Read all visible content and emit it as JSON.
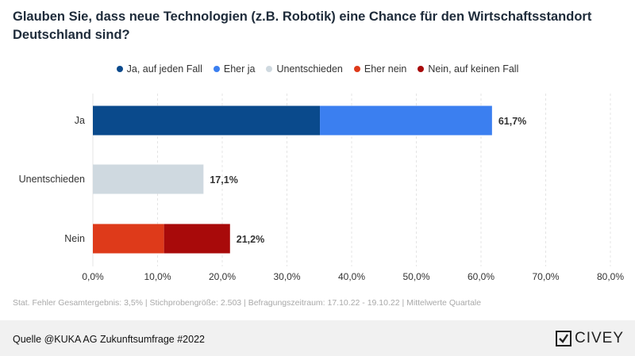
{
  "chart_data": {
    "type": "bar",
    "orientation": "horizontal",
    "stacked": true,
    "title": "Glauben Sie, dass neue Technologien (z.B. Robotik) eine Chance für den Wirtschaftsstandort Deutschland sind?",
    "categories": [
      "Ja",
      "Unentschieden",
      "Nein"
    ],
    "series": [
      {
        "name": "Ja, auf jeden Fall",
        "color": "#0a4a8c",
        "values": [
          35.1,
          0,
          0
        ]
      },
      {
        "name": "Eher ja",
        "color": "#3b7ff0",
        "values": [
          26.6,
          0,
          0
        ]
      },
      {
        "name": "Unentschieden",
        "color": "#cfd9e0",
        "values": [
          0,
          17.1,
          0
        ]
      },
      {
        "name": "Eher nein",
        "color": "#de3a1a",
        "values": [
          0,
          0,
          11.0
        ]
      },
      {
        "name": "Nein, auf keinen Fall",
        "color": "#a80a0a",
        "values": [
          0,
          0,
          10.2
        ]
      }
    ],
    "totals": [
      "61,7%",
      "17,1%",
      "21,2%"
    ],
    "xlim": [
      0,
      80
    ],
    "xticks": [
      "0,0%",
      "10,0%",
      "20,0%",
      "30,0%",
      "40,0%",
      "50,0%",
      "60,0%",
      "70,0%",
      "80,0%"
    ],
    "grid": true,
    "legend_position": "top"
  },
  "footnote": "Stat. Fehler Gesamtergebnis: 3,5% | Stichprobengröße: 2.503 | Befragungszeitraum: 17.10.22 - 19.10.22 | Mittelwerte Quartale",
  "source": "Quelle @KUKA AG Zukunftsumfrage #2022",
  "brand": "CIVEY"
}
